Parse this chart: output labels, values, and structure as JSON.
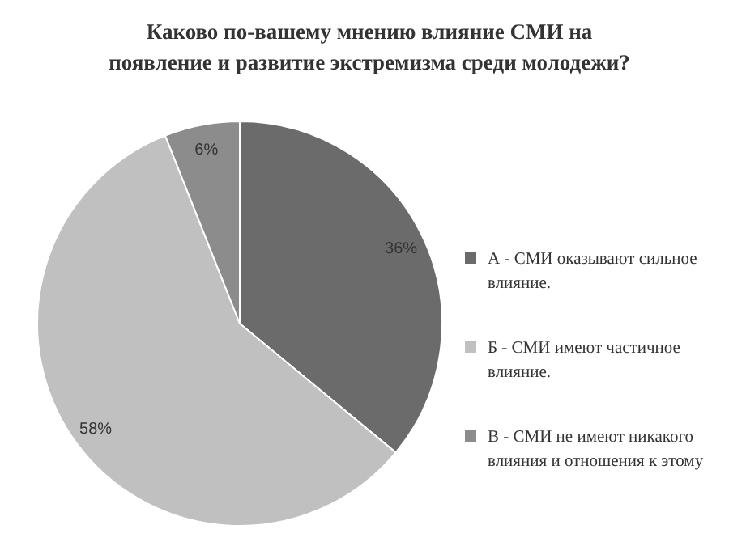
{
  "chart_data": {
    "type": "pie",
    "title": "Каково по-вашему мнению влияние СМИ на появление и развитие экстремизма среди молодежи?",
    "categories": [
      "А - СМИ оказывают сильное влияние.",
      "Б - СМИ имеют частичное влияние.",
      "В - СМИ не имеют никакого влияния и отношения к этому"
    ],
    "values": [
      36,
      58,
      6
    ],
    "colors": [
      "#6b6b6b",
      "#c0c0c0",
      "#8c8c8c"
    ],
    "value_labels": [
      "36%",
      "58%",
      "6%"
    ],
    "legend": "right"
  }
}
